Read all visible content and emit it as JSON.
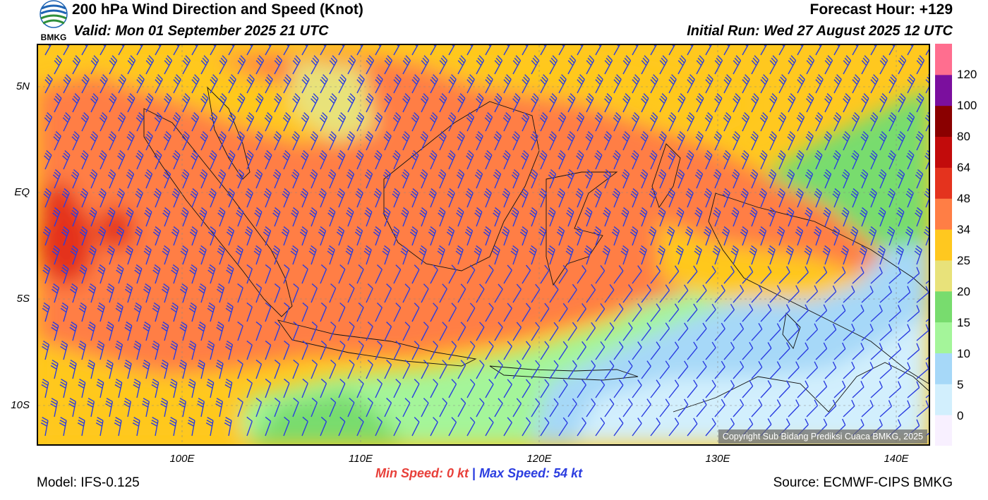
{
  "header": {
    "title": "200 hPa Wind Direction and Speed (Knot)",
    "valid": "Valid: Mon 01 September 2025 21 UTC",
    "forecast_hour": "Forecast Hour: +129",
    "initial_run": "Initial Run: Wed 27 August 2025 12 UTC",
    "logo_text": "BMKG"
  },
  "map": {
    "lat_labels": [
      "5N",
      "EQ",
      "5S",
      "10S"
    ],
    "lon_labels": [
      "100E",
      "110E",
      "120E",
      "130E",
      "140E"
    ],
    "copyright": "Copyright Sub Bidang Prediksi Cuaca BMKG, 2025"
  },
  "colorbar": {
    "labels": [
      "120",
      "100",
      "80",
      "64",
      "48",
      "34",
      "25",
      "20",
      "15",
      "10",
      "5",
      "0"
    ],
    "colors": [
      "#f8f0ff",
      "#d2effd",
      "#a6d8f8",
      "#a4f59a",
      "#78dc6e",
      "#e8e27a",
      "#ffc81f",
      "#ff7e45",
      "#e4331e",
      "#c20b0b",
      "#8a0000",
      "#7b0f9e",
      "#ff6e8f"
    ]
  },
  "footer": {
    "min_speed": "Min Speed:   0 kt",
    "separator": "|",
    "max_speed": "Max Speed:  54 kt",
    "model": "Model: IFS-0.125",
    "source": "Source: ECMWF-CIPS BMKG"
  },
  "barb_color": "#2b3de0"
}
